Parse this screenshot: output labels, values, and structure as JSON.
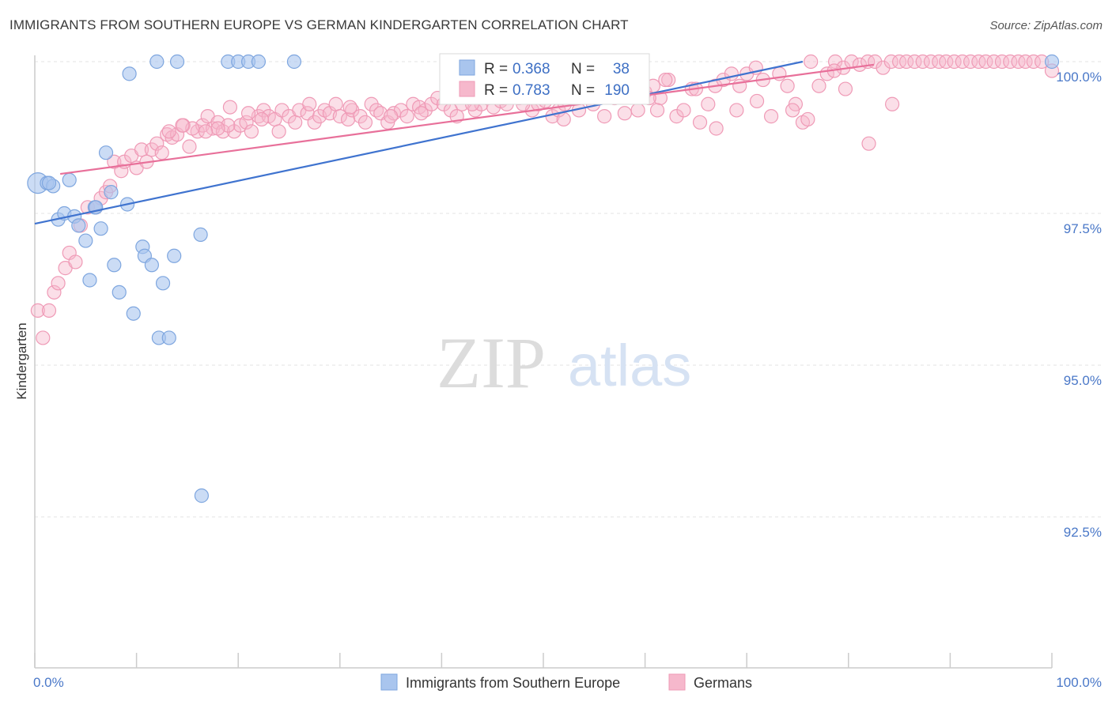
{
  "header": {
    "title": "IMMIGRANTS FROM SOUTHERN EUROPE VS GERMAN KINDERGARTEN CORRELATION CHART",
    "source": "Source: ZipAtlas.com"
  },
  "watermark": {
    "zip": "ZIP",
    "atlas": "atlas"
  },
  "stats": {
    "r_label": "R =",
    "n_label": "N =",
    "blue": {
      "r": "0.368",
      "n": "38"
    },
    "pink": {
      "r": "0.783",
      "n": "190"
    }
  },
  "legend": {
    "blue_label": "Immigrants from Southern Europe",
    "pink_label": "Germans"
  },
  "colors": {
    "blue_fill": "#a9c5ee",
    "blue_stroke": "#7ea6df",
    "blue_line": "#3f73cf",
    "pink_fill": "#f6b8cc",
    "pink_stroke": "#ef9ab6",
    "pink_line": "#e8709a",
    "tick_text": "#4a78c8",
    "grid": "#e3e3e3"
  },
  "chart_data": {
    "type": "scatter",
    "title": "IMMIGRANTS FROM SOUTHERN EUROPE VS GERMAN KINDERGARTEN CORRELATION CHART",
    "xlabel": "",
    "ylabel": "Kindergarten",
    "xlim": [
      0,
      100
    ],
    "ylim": [
      90.2,
      100.35
    ],
    "x_tick_labels": [
      "0.0%",
      "100.0%"
    ],
    "y_ticks": [
      {
        "value": 100.0,
        "label": "100.0%"
      },
      {
        "value": 97.5,
        "label": "97.5%"
      },
      {
        "value": 95.0,
        "label": "95.0%"
      },
      {
        "value": 92.5,
        "label": "92.5%"
      }
    ],
    "grid": "horizontal dashed",
    "legend_position": "bottom-center",
    "series": [
      {
        "name": "Immigrants from Southern Europe",
        "color": "#a9c5ee",
        "trend": {
          "x": [
            0,
            75.5
          ],
          "y": [
            97.33,
            100.0
          ]
        },
        "points": [
          [
            0.3,
            98.0
          ],
          [
            1.2,
            98.0
          ],
          [
            1.8,
            97.95
          ],
          [
            3.4,
            98.05
          ],
          [
            7.0,
            98.5
          ],
          [
            9.3,
            99.8
          ],
          [
            12.0,
            100.0
          ],
          [
            14.0,
            100.0
          ],
          [
            19.0,
            100.0
          ],
          [
            20.0,
            100.0
          ],
          [
            21.0,
            100.0
          ],
          [
            22.0,
            100.0
          ],
          [
            25.5,
            100.0
          ],
          [
            2.3,
            97.4
          ],
          [
            2.9,
            97.5
          ],
          [
            3.9,
            97.45
          ],
          [
            4.3,
            97.3
          ],
          [
            5.0,
            97.05
          ],
          [
            5.9,
            97.6
          ],
          [
            6.5,
            97.25
          ],
          [
            7.5,
            97.85
          ],
          [
            9.1,
            97.65
          ],
          [
            7.8,
            96.65
          ],
          [
            10.6,
            96.95
          ],
          [
            10.8,
            96.8
          ],
          [
            11.5,
            96.65
          ],
          [
            13.7,
            96.8
          ],
          [
            16.3,
            97.15
          ],
          [
            5.4,
            96.4
          ],
          [
            8.3,
            96.2
          ],
          [
            9.7,
            95.85
          ],
          [
            12.6,
            96.35
          ],
          [
            12.2,
            95.45
          ],
          [
            13.2,
            95.45
          ],
          [
            16.4,
            92.85
          ],
          [
            100.0,
            100.0
          ],
          [
            6.0,
            97.6
          ],
          [
            1.4,
            98.0
          ]
        ]
      },
      {
        "name": "Germans",
        "color": "#f6b8cc",
        "trend": {
          "x": [
            2.5,
            82.5
          ],
          "y": [
            98.15,
            99.95
          ]
        },
        "points": [
          [
            0.3,
            95.9
          ],
          [
            0.8,
            95.45
          ],
          [
            1.4,
            95.9
          ],
          [
            1.9,
            96.2
          ],
          [
            2.3,
            96.35
          ],
          [
            3.0,
            96.6
          ],
          [
            3.4,
            96.85
          ],
          [
            4.0,
            96.7
          ],
          [
            4.5,
            97.3
          ],
          [
            5.2,
            97.6
          ],
          [
            6.0,
            97.6
          ],
          [
            6.5,
            97.75
          ],
          [
            7.0,
            97.85
          ],
          [
            7.4,
            97.95
          ],
          [
            7.8,
            98.35
          ],
          [
            8.5,
            98.2
          ],
          [
            8.8,
            98.35
          ],
          [
            9.5,
            98.45
          ],
          [
            10.0,
            98.25
          ],
          [
            10.5,
            98.55
          ],
          [
            11.0,
            98.35
          ],
          [
            11.5,
            98.55
          ],
          [
            12.0,
            98.65
          ],
          [
            12.5,
            98.5
          ],
          [
            13.0,
            98.8
          ],
          [
            13.5,
            98.75
          ],
          [
            14.0,
            98.8
          ],
          [
            14.6,
            98.95
          ],
          [
            15.2,
            98.6
          ],
          [
            16.0,
            98.85
          ],
          [
            16.5,
            98.95
          ],
          [
            17.0,
            99.1
          ],
          [
            17.5,
            98.9
          ],
          [
            18.0,
            99.0
          ],
          [
            18.5,
            98.85
          ],
          [
            19.2,
            99.25
          ],
          [
            19.6,
            98.85
          ],
          [
            20.2,
            98.95
          ],
          [
            20.8,
            99.0
          ],
          [
            21.3,
            98.85
          ],
          [
            22.0,
            99.1
          ],
          [
            22.5,
            99.2
          ],
          [
            23.0,
            99.1
          ],
          [
            23.6,
            99.05
          ],
          [
            24.3,
            99.2
          ],
          [
            25.0,
            99.1
          ],
          [
            25.6,
            99.0
          ],
          [
            26.0,
            99.2
          ],
          [
            26.8,
            99.15
          ],
          [
            27.5,
            99.0
          ],
          [
            28.0,
            99.1
          ],
          [
            28.5,
            99.2
          ],
          [
            29.0,
            99.15
          ],
          [
            29.6,
            99.3
          ],
          [
            30.0,
            99.1
          ],
          [
            30.8,
            99.05
          ],
          [
            31.2,
            99.2
          ],
          [
            32.0,
            99.1
          ],
          [
            32.5,
            99.0
          ],
          [
            33.1,
            99.3
          ],
          [
            33.6,
            99.2
          ],
          [
            34.0,
            99.15
          ],
          [
            34.7,
            99.0
          ],
          [
            35.3,
            99.15
          ],
          [
            36.0,
            99.2
          ],
          [
            36.6,
            99.1
          ],
          [
            37.2,
            99.3
          ],
          [
            37.8,
            99.25
          ],
          [
            38.4,
            99.2
          ],
          [
            39.0,
            99.3
          ],
          [
            39.6,
            99.4
          ],
          [
            40.2,
            99.3
          ],
          [
            40.9,
            99.2
          ],
          [
            41.5,
            99.1
          ],
          [
            42.0,
            99.3
          ],
          [
            42.7,
            99.4
          ],
          [
            43.3,
            99.2
          ],
          [
            43.9,
            99.3
          ],
          [
            44.5,
            99.4
          ],
          [
            45.1,
            99.25
          ],
          [
            45.8,
            99.35
          ],
          [
            46.4,
            99.3
          ],
          [
            47.0,
            99.45
          ],
          [
            47.6,
            99.4
          ],
          [
            48.3,
            99.5
          ],
          [
            48.9,
            99.2
          ],
          [
            49.5,
            99.3
          ],
          [
            50.2,
            99.35
          ],
          [
            50.9,
            99.1
          ],
          [
            51.5,
            99.2
          ],
          [
            52.1,
            99.3
          ],
          [
            52.8,
            99.4
          ],
          [
            53.5,
            99.2
          ],
          [
            54.2,
            99.45
          ],
          [
            54.9,
            99.3
          ],
          [
            55.6,
            99.6
          ],
          [
            56.2,
            99.55
          ],
          [
            57.0,
            99.4
          ],
          [
            57.8,
            99.5
          ],
          [
            58.5,
            99.7
          ],
          [
            59.3,
            99.2
          ],
          [
            60.0,
            99.5
          ],
          [
            60.8,
            99.6
          ],
          [
            61.5,
            99.4
          ],
          [
            62.3,
            99.7
          ],
          [
            63.1,
            99.1
          ],
          [
            63.8,
            99.2
          ],
          [
            64.6,
            99.55
          ],
          [
            65.4,
            99.0
          ],
          [
            66.2,
            99.3
          ],
          [
            66.9,
            99.6
          ],
          [
            67.7,
            99.7
          ],
          [
            68.5,
            99.8
          ],
          [
            69.3,
            99.6
          ],
          [
            70.0,
            99.8
          ],
          [
            70.9,
            99.9
          ],
          [
            71.6,
            99.7
          ],
          [
            72.4,
            99.1
          ],
          [
            73.2,
            99.8
          ],
          [
            74.0,
            99.6
          ],
          [
            74.8,
            99.3
          ],
          [
            75.5,
            99.0
          ],
          [
            76.3,
            100.0
          ],
          [
            77.1,
            99.6
          ],
          [
            77.9,
            99.8
          ],
          [
            78.7,
            100.0
          ],
          [
            79.5,
            99.9
          ],
          [
            80.3,
            100.0
          ],
          [
            81.1,
            99.95
          ],
          [
            81.9,
            100.0
          ],
          [
            82.6,
            100.0
          ],
          [
            83.4,
            99.9
          ],
          [
            84.2,
            100.0
          ],
          [
            85.0,
            100.0
          ],
          [
            85.7,
            100.0
          ],
          [
            86.5,
            100.0
          ],
          [
            87.3,
            100.0
          ],
          [
            88.1,
            100.0
          ],
          [
            88.9,
            100.0
          ],
          [
            89.6,
            100.0
          ],
          [
            90.4,
            100.0
          ],
          [
            91.2,
            100.0
          ],
          [
            92.0,
            100.0
          ],
          [
            92.8,
            100.0
          ],
          [
            93.5,
            100.0
          ],
          [
            94.3,
            100.0
          ],
          [
            95.1,
            100.0
          ],
          [
            95.9,
            100.0
          ],
          [
            96.7,
            100.0
          ],
          [
            97.4,
            100.0
          ],
          [
            98.2,
            100.0
          ],
          [
            99.0,
            100.0
          ],
          [
            100.0,
            99.85
          ],
          [
            84.3,
            99.3
          ],
          [
            78.6,
            99.85
          ],
          [
            71.0,
            99.35
          ],
          [
            74.5,
            99.2
          ],
          [
            69.0,
            99.2
          ],
          [
            65.0,
            99.55
          ],
          [
            62.0,
            99.7
          ],
          [
            60.4,
            99.4
          ],
          [
            58.0,
            99.15
          ],
          [
            56.5,
            99.75
          ],
          [
            53.0,
            99.6
          ],
          [
            50.0,
            99.45
          ],
          [
            48.0,
            99.3
          ],
          [
            45.0,
            99.5
          ],
          [
            41.0,
            99.55
          ],
          [
            35.0,
            99.1
          ],
          [
            31.0,
            99.25
          ],
          [
            27.0,
            99.3
          ],
          [
            24.0,
            98.85
          ],
          [
            22.3,
            99.05
          ],
          [
            21.0,
            99.15
          ],
          [
            19.0,
            98.95
          ],
          [
            18.0,
            98.9
          ],
          [
            16.8,
            98.85
          ],
          [
            15.5,
            98.9
          ],
          [
            14.5,
            98.95
          ],
          [
            13.2,
            98.85
          ],
          [
            82.0,
            98.65
          ],
          [
            79.7,
            99.55
          ],
          [
            76.0,
            99.05
          ],
          [
            67.0,
            98.9
          ],
          [
            61.2,
            99.2
          ],
          [
            56.0,
            99.1
          ],
          [
            52.0,
            99.05
          ],
          [
            46.0,
            99.4
          ],
          [
            43.0,
            99.3
          ],
          [
            38.0,
            99.15
          ]
        ]
      }
    ]
  }
}
